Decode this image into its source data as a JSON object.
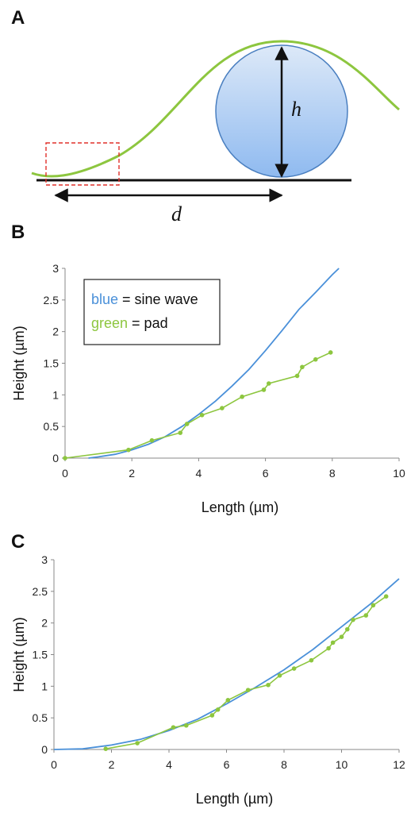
{
  "panels": {
    "a": "A",
    "b": "B",
    "c": "C"
  },
  "diagram": {
    "label_h": "h",
    "label_d": "d",
    "wave_color": "#8dc63f",
    "ball_color_top": "#dde9f8",
    "ball_color_bottom": "#8fbaf0",
    "box_color": "#e0312a"
  },
  "legend": {
    "blue_word": "blue",
    "blue_rest": " = sine wave",
    "green_word": "green",
    "green_rest": " = pad",
    "blue_color": "#4a90d9",
    "green_color": "#8dc63f"
  },
  "chart_data": [
    {
      "type": "line",
      "panel": "B",
      "xlabel": "Length (µm)",
      "ylabel": "Height (µm)",
      "xlim": [
        0,
        10
      ],
      "ylim": [
        0,
        3
      ],
      "xticks": [
        "0",
        "2",
        "4",
        "6",
        "8",
        "10"
      ],
      "yticks": [
        "0",
        "0.5",
        "1",
        "1.5",
        "2",
        "2.5",
        "3"
      ],
      "grid": false,
      "legend_position": "top-left",
      "series": [
        {
          "name": "sine wave",
          "color": "#4a90d9",
          "points": [
            [
              0.7,
              0
            ],
            [
              1,
              0.02
            ],
            [
              1.5,
              0.06
            ],
            [
              2,
              0.13
            ],
            [
              2.5,
              0.22
            ],
            [
              3,
              0.34
            ],
            [
              3.5,
              0.5
            ],
            [
              4,
              0.69
            ],
            [
              4.5,
              0.9
            ],
            [
              5,
              1.14
            ],
            [
              5.5,
              1.4
            ],
            [
              6,
              1.7
            ],
            [
              6.5,
              2.02
            ],
            [
              7,
              2.35
            ],
            [
              7.5,
              2.62
            ],
            [
              8,
              2.9
            ],
            [
              8.2,
              3.0
            ]
          ]
        },
        {
          "name": "pad",
          "color": "#8dc63f",
          "markers": true,
          "points": [
            [
              0,
              0
            ],
            [
              1.9,
              0.13
            ],
            [
              2.6,
              0.28
            ],
            [
              3.45,
              0.4
            ],
            [
              3.65,
              0.54
            ],
            [
              4.1,
              0.68
            ],
            [
              4.7,
              0.79
            ],
            [
              5.3,
              0.97
            ],
            [
              5.95,
              1.08
            ],
            [
              6.1,
              1.18
            ],
            [
              6.95,
              1.3
            ],
            [
              7.1,
              1.44
            ],
            [
              7.5,
              1.56
            ],
            [
              7.95,
              1.67
            ]
          ]
        }
      ]
    },
    {
      "type": "line",
      "panel": "C",
      "xlabel": "Length (µm)",
      "ylabel": "Height (µm)",
      "xlim": [
        0,
        12
      ],
      "ylim": [
        0,
        3
      ],
      "xticks": [
        "0",
        "2",
        "4",
        "6",
        "8",
        "10",
        "12"
      ],
      "yticks": [
        "0",
        "0.5",
        "1",
        "1.5",
        "2",
        "2.5",
        "3"
      ],
      "grid": false,
      "series": [
        {
          "name": "sine wave",
          "color": "#4a90d9",
          "points": [
            [
              0,
              0
            ],
            [
              1,
              0.01
            ],
            [
              2,
              0.07
            ],
            [
              3,
              0.16
            ],
            [
              4,
              0.3
            ],
            [
              5,
              0.48
            ],
            [
              6,
              0.72
            ],
            [
              7,
              0.98
            ],
            [
              8,
              1.26
            ],
            [
              9,
              1.58
            ],
            [
              10,
              1.94
            ],
            [
              11,
              2.3
            ],
            [
              12,
              2.7
            ]
          ]
        },
        {
          "name": "pad",
          "color": "#8dc63f",
          "markers": true,
          "points": [
            [
              1.8,
              0.01
            ],
            [
              2.9,
              0.1
            ],
            [
              4.15,
              0.35
            ],
            [
              4.6,
              0.38
            ],
            [
              5.5,
              0.54
            ],
            [
              5.7,
              0.63
            ],
            [
              6.05,
              0.78
            ],
            [
              6.75,
              0.94
            ],
            [
              7.45,
              1.02
            ],
            [
              7.85,
              1.17
            ],
            [
              8.35,
              1.28
            ],
            [
              8.95,
              1.41
            ],
            [
              9.55,
              1.6
            ],
            [
              9.7,
              1.69
            ],
            [
              10,
              1.78
            ],
            [
              10.2,
              1.9
            ],
            [
              10.4,
              2.05
            ],
            [
              10.85,
              2.12
            ],
            [
              11.1,
              2.28
            ],
            [
              11.55,
              2.42
            ]
          ]
        }
      ]
    }
  ]
}
